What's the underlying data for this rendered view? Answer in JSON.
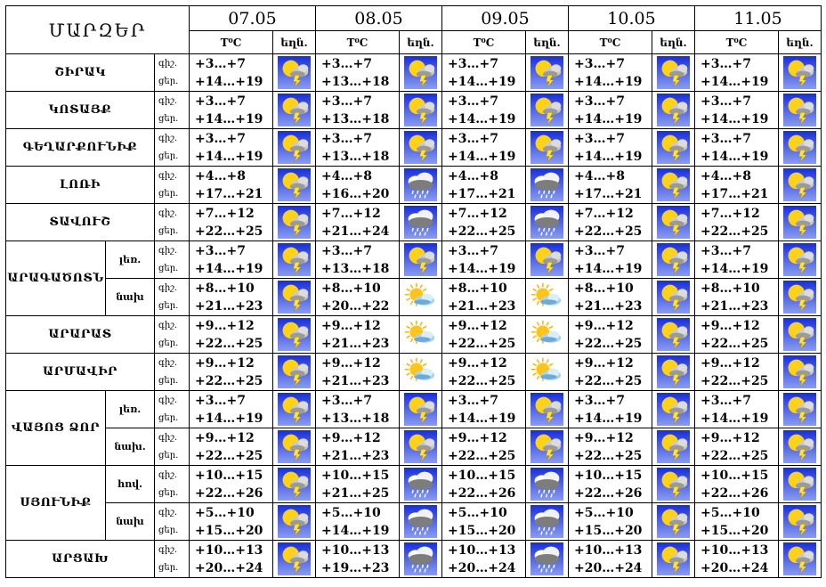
{
  "table_title": "ՄԱՐԶԵՐ",
  "dates": [
    "07.05",
    "08.05",
    "09.05",
    "10.05",
    "11.05"
  ],
  "col_temp": "T⁰C",
  "col_weather": "եղն.",
  "regions": [
    {
      "name": "ՇԻՐԱԿ",
      "rows": [
        {
          "sub": "",
          "labels": [
            "գիշ.",
            "ցեր."
          ],
          "days": [
            {
              "night": "+3…+7",
              "day": "+14…+19",
              "icon": "sun-cloud-thunder-icon"
            },
            {
              "night": "+3…+7",
              "day": "+13…+18",
              "icon": "sun-cloud-thunder-icon"
            },
            {
              "night": "+3…+7",
              "day": "+14…+19",
              "icon": "sun-cloud-thunder-icon"
            },
            {
              "night": "+3…+7",
              "day": "+14…+19",
              "icon": "sun-cloud-thunder-icon"
            },
            {
              "night": "+3…+7",
              "day": "+14…+19",
              "icon": "sun-cloud-thunder-icon"
            }
          ]
        }
      ]
    },
    {
      "name": "ԿՈՏԱՅՔ",
      "rows": [
        {
          "sub": "",
          "labels": [
            "գիշ.",
            "ցեր."
          ],
          "days": [
            {
              "night": "+3…+7",
              "day": "+14…+19",
              "icon": "sun-cloud-thunder-icon"
            },
            {
              "night": "+3…+7",
              "day": "+13…+18",
              "icon": "sun-cloud-thunder-icon"
            },
            {
              "night": "+3…+7",
              "day": "+14…+19",
              "icon": "sun-cloud-thunder-icon"
            },
            {
              "night": "+3…+7",
              "day": "+14…+19",
              "icon": "sun-cloud-thunder-icon"
            },
            {
              "night": "+3…+7",
              "day": "+14…+19",
              "icon": "sun-cloud-thunder-icon"
            }
          ]
        }
      ]
    },
    {
      "name": "ԳԵՂԱՐՔՈՒՆԻՔ",
      "rows": [
        {
          "sub": "",
          "labels": [
            "գիշ.",
            "ցեր."
          ],
          "days": [
            {
              "night": "+3…+7",
              "day": "+14…+19",
              "icon": "sun-cloud-thunder-icon"
            },
            {
              "night": "+3…+7",
              "day": "+13…+18",
              "icon": "sun-cloud-thunder-icon"
            },
            {
              "night": "+3…+7",
              "day": "+14…+19",
              "icon": "sun-cloud-thunder-icon"
            },
            {
              "night": "+3…+7",
              "day": "+14…+19",
              "icon": "sun-cloud-thunder-icon"
            },
            {
              "night": "+3…+7",
              "day": "+14…+19",
              "icon": "sun-cloud-thunder-icon"
            }
          ]
        }
      ]
    },
    {
      "name": "ԼՈՌԻ",
      "rows": [
        {
          "sub": "",
          "labels": [
            "գիշ.",
            "ցեր."
          ],
          "days": [
            {
              "night": "+4…+8",
              "day": "+17…+21",
              "icon": "sun-cloud-thunder-icon"
            },
            {
              "night": "+4…+8",
              "day": "+16…+20",
              "icon": "cloud-rain-icon"
            },
            {
              "night": "+4…+8",
              "day": "+17…+21",
              "icon": "cloud-rain-icon"
            },
            {
              "night": "+4…+8",
              "day": "+17…+21",
              "icon": "sun-cloud-thunder-icon"
            },
            {
              "night": "+4…+8",
              "day": "+17…+21",
              "icon": "sun-cloud-thunder-icon"
            }
          ]
        }
      ]
    },
    {
      "name": "ՏԱՎՈՒՇ",
      "rows": [
        {
          "sub": "",
          "labels": [
            "գիշ.",
            "ցեր."
          ],
          "days": [
            {
              "night": "+7…+12",
              "day": "+22…+25",
              "icon": "sun-cloud-thunder-icon"
            },
            {
              "night": "+7…+12",
              "day": "+21…+24",
              "icon": "cloud-rain-icon"
            },
            {
              "night": "+7…+12",
              "day": "+22…+25",
              "icon": "cloud-rain-icon"
            },
            {
              "night": "+7…+12",
              "day": "+22…+25",
              "icon": "sun-cloud-thunder-icon"
            },
            {
              "night": "+7…+12",
              "day": "+22…+25",
              "icon": "sun-cloud-thunder-icon"
            }
          ]
        }
      ]
    },
    {
      "name": "ԱՐԱԳԱԾՈՏՆ",
      "rows": [
        {
          "sub": "լեռ.",
          "labels": [
            "գիշ.",
            "ցեր."
          ],
          "days": [
            {
              "night": "+3…+7",
              "day": "+14…+19",
              "icon": "sun-cloud-thunder-icon"
            },
            {
              "night": "+3…+7",
              "day": "+13…+18",
              "icon": "sun-cloud-thunder-icon"
            },
            {
              "night": "+3…+7",
              "day": "+14…+19",
              "icon": "sun-cloud-thunder-icon"
            },
            {
              "night": "+3…+7",
              "day": "+14…+19",
              "icon": "sun-cloud-thunder-icon"
            },
            {
              "night": "+3…+7",
              "day": "+14…+19",
              "icon": "sun-cloud-thunder-icon"
            }
          ]
        },
        {
          "sub": "նախ",
          "labels": [
            "գիշ.",
            "ցեր."
          ],
          "days": [
            {
              "night": "+8…+10",
              "day": "+21…+23",
              "icon": "sun-cloud-thunder-icon"
            },
            {
              "night": "+8…+10",
              "day": "+20…+22",
              "icon": "sun-cloud-icon"
            },
            {
              "night": "+8…+10",
              "day": "+21…+23",
              "icon": "sun-cloud-icon"
            },
            {
              "night": "+8…+10",
              "day": "+21…+23",
              "icon": "sun-cloud-thunder-icon"
            },
            {
              "night": "+8…+10",
              "day": "+21…+23",
              "icon": "sun-cloud-thunder-icon"
            }
          ]
        }
      ]
    },
    {
      "name": "ԱՐԱՐԱՏ",
      "rows": [
        {
          "sub": "",
          "labels": [
            "գիշ.",
            "ցեր."
          ],
          "days": [
            {
              "night": "+9…+12",
              "day": "+22…+25",
              "icon": "sun-cloud-thunder-icon"
            },
            {
              "night": "+9…+12",
              "day": "+21…+23",
              "icon": "sun-cloud-icon"
            },
            {
              "night": "+9…+12",
              "day": "+22…+25",
              "icon": "sun-cloud-icon"
            },
            {
              "night": "+9…+12",
              "day": "+22…+25",
              "icon": "sun-cloud-thunder-icon"
            },
            {
              "night": "+9…+12",
              "day": "+22…+25",
              "icon": "sun-cloud-thunder-icon"
            }
          ]
        }
      ]
    },
    {
      "name": "ԱՐՄԱՎԻՐ",
      "rows": [
        {
          "sub": "",
          "labels": [
            "գիշ.",
            "ցեր."
          ],
          "days": [
            {
              "night": "+9…+12",
              "day": "+22…+25",
              "icon": "sun-cloud-thunder-icon"
            },
            {
              "night": "+9…+12",
              "day": "+21…+23",
              "icon": "sun-cloud-icon"
            },
            {
              "night": "+9…+12",
              "day": "+22…+25",
              "icon": "sun-cloud-icon"
            },
            {
              "night": "+9…+12",
              "day": "+22…+25",
              "icon": "sun-cloud-thunder-icon"
            },
            {
              "night": "+9…+12",
              "day": "+22…+25",
              "icon": "sun-cloud-thunder-icon"
            }
          ]
        }
      ]
    },
    {
      "name": "ՎԱՅՈՑ ՁՈՐ",
      "rows": [
        {
          "sub": "լեռ.",
          "labels": [
            "գիշ.",
            "ցեր."
          ],
          "days": [
            {
              "night": "+3…+7",
              "day": "+14…+19",
              "icon": "sun-cloud-thunder-icon"
            },
            {
              "night": "+3…+7",
              "day": "+13…+18",
              "icon": "sun-cloud-thunder-icon"
            },
            {
              "night": "+3…+7",
              "day": "+14…+19",
              "icon": "sun-cloud-thunder-icon"
            },
            {
              "night": "+3…+7",
              "day": "+14…+19",
              "icon": "sun-cloud-thunder-icon"
            },
            {
              "night": "+3…+7",
              "day": "+14…+19",
              "icon": "sun-cloud-thunder-icon"
            }
          ]
        },
        {
          "sub": "նախ.",
          "labels": [
            "գիշ.",
            "ցեր."
          ],
          "days": [
            {
              "night": "+9…+12",
              "day": "+22…+25",
              "icon": "sun-cloud-thunder-icon"
            },
            {
              "night": "+9…+12",
              "day": "+21…+23",
              "icon": "sun-cloud-thunder-icon"
            },
            {
              "night": "+9…+12",
              "day": "+22…+25",
              "icon": "sun-cloud-thunder-icon"
            },
            {
              "night": "+9…+12",
              "day": "+22…+25",
              "icon": "sun-cloud-thunder-icon"
            },
            {
              "night": "+9…+12",
              "day": "+22…+25",
              "icon": "sun-cloud-thunder-icon"
            }
          ]
        }
      ]
    },
    {
      "name": "ՍՅՈՒՆԻՔ",
      "rows": [
        {
          "sub": "հով.",
          "labels": [
            "գիշ.",
            "ցեր."
          ],
          "days": [
            {
              "night": "+10…+15",
              "day": "+22…+26",
              "icon": "sun-cloud-thunder-icon"
            },
            {
              "night": "+10…+15",
              "day": "+21…+25",
              "icon": "cloud-rain-icon"
            },
            {
              "night": "+10…+15",
              "day": "+22…+26",
              "icon": "cloud-rain-icon"
            },
            {
              "night": "+10…+15",
              "day": "+22…+26",
              "icon": "sun-cloud-thunder-icon"
            },
            {
              "night": "+10…+15",
              "day": "+22…+26",
              "icon": "sun-cloud-thunder-icon"
            }
          ]
        },
        {
          "sub": "նախ",
          "labels": [
            "գիշ.",
            "ցեր."
          ],
          "days": [
            {
              "night": "+5…+10",
              "day": "+15…+20",
              "icon": "sun-cloud-thunder-icon"
            },
            {
              "night": "+5…+10",
              "day": "+14…+19",
              "icon": "cloud-rain-icon"
            },
            {
              "night": "+5…+10",
              "day": "+15…+20",
              "icon": "cloud-rain-icon"
            },
            {
              "night": "+5…+10",
              "day": "+15…+20",
              "icon": "sun-cloud-thunder-icon"
            },
            {
              "night": "+5…+10",
              "day": "+15…+20",
              "icon": "sun-cloud-thunder-icon"
            }
          ]
        }
      ]
    },
    {
      "name": "ԱՐՑԱԽ",
      "rows": [
        {
          "sub": "",
          "labels": [
            "գիշ.",
            "ցեր."
          ],
          "days": [
            {
              "night": "+10…+13",
              "day": "+20…+24",
              "icon": "sun-cloud-thunder-icon"
            },
            {
              "night": "+10…+13",
              "day": "+19…+23",
              "icon": "cloud-rain-icon"
            },
            {
              "night": "+10…+13",
              "day": "+20…+24",
              "icon": "cloud-rain-icon"
            },
            {
              "night": "+10…+13",
              "day": "+20…+24",
              "icon": "sun-cloud-thunder-icon"
            },
            {
              "night": "+10…+13",
              "day": "+20…+24",
              "icon": "sun-cloud-thunder-icon"
            }
          ]
        }
      ]
    }
  ],
  "label_overrides": {
    "armavir_day_label": "ցեր."
  },
  "colors": {
    "icon_bg_top": "#1a2fd6",
    "icon_bg_bottom": "#8a9cf2",
    "sun": "#ffd21a",
    "cloud": "#c9c9c9",
    "bolt": "#ffe23a"
  }
}
